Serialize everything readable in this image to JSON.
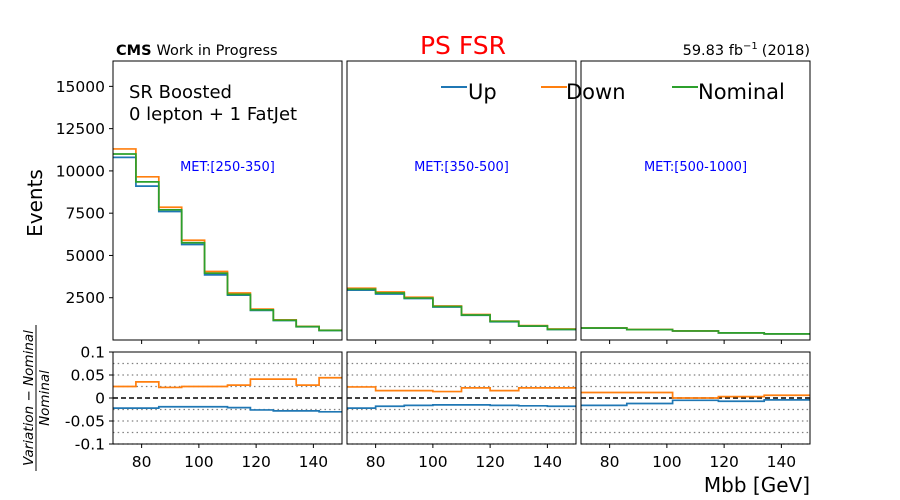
{
  "header": {
    "experiment": "CMS",
    "status": "Work in Progress",
    "title": "PS FSR",
    "lumi_value": "59.83 fb",
    "lumi_exponent": "−1",
    "lumi_year": "(2018)"
  },
  "region": {
    "line1": "SR Boosted",
    "line2": "0 lepton + 1 FatJet"
  },
  "colors": {
    "Up": "#1f77b4",
    "Down": "#ff7f0e",
    "Nominal": "#2ca02c",
    "title": "#ff0000",
    "bin_label": "#0000ff"
  },
  "chart_data": {
    "type": "line",
    "drawstyle": "steps",
    "xlabel": "Mbb [GeV]",
    "ylabel": "Events",
    "ratio_ylabel": {
      "numerator": "Variation − Nominal",
      "denominator": "Nominal"
    },
    "xlim": [
      70,
      150
    ],
    "ylim": [
      0,
      16500
    ],
    "ratio_ylim": [
      -0.1,
      0.1
    ],
    "x_ticks": [
      80,
      100,
      120,
      140
    ],
    "y_ticks": [
      2500,
      5000,
      7500,
      10000,
      12500,
      15000
    ],
    "ratio_y_ticks": [
      0.1,
      0.05,
      0,
      -0.05,
      -0.1
    ],
    "ratio_y_tick_labels": [
      "0.1",
      "0.05",
      "0",
      "-0.05",
      "-0.1"
    ],
    "legend": [
      "Up",
      "Down",
      "Nominal"
    ],
    "legend_position": "top",
    "panels": [
      {
        "label": "MET:[250-350]",
        "bin_edges": [
          70,
          78,
          86,
          94,
          102,
          110,
          118,
          126,
          134,
          142,
          150
        ],
        "series": [
          {
            "name": "Up",
            "values": [
              10800,
              9100,
              7600,
              5650,
              3850,
              2650,
              1750,
              1150,
              780,
              560
            ]
          },
          {
            "name": "Down",
            "values": [
              11300,
              9650,
              7850,
              5900,
              4050,
              2780,
              1830,
              1190,
              810,
              580
            ]
          },
          {
            "name": "Nominal",
            "values": [
              11000,
              9350,
              7700,
              5750,
              3950,
              2700,
              1780,
              1170,
              790,
              570
            ]
          }
        ],
        "ratio": [
          {
            "name": "Up",
            "values": [
              -0.022,
              -0.022,
              -0.019,
              -0.019,
              -0.019,
              -0.021,
              -0.026,
              -0.028,
              -0.028,
              -0.03
            ]
          },
          {
            "name": "Down",
            "values": [
              0.025,
              0.035,
              0.023,
              0.025,
              0.025,
              0.028,
              0.041,
              0.041,
              0.028,
              0.044
            ]
          }
        ]
      },
      {
        "label": "MET:[350-500]",
        "bin_edges": [
          70,
          80,
          90,
          100,
          110,
          120,
          130,
          140,
          150
        ],
        "series": [
          {
            "name": "Up",
            "values": [
              2950,
              2720,
              2450,
              1950,
              1460,
              1080,
              820,
              620
            ]
          },
          {
            "name": "Down",
            "values": [
              3060,
              2840,
              2530,
              2010,
              1510,
              1120,
              850,
              650
            ]
          },
          {
            "name": "Nominal",
            "values": [
              3000,
              2780,
              2480,
              1980,
              1480,
              1100,
              830,
              630
            ]
          }
        ],
        "ratio": [
          {
            "name": "Up",
            "values": [
              -0.022,
              -0.018,
              -0.016,
              -0.015,
              -0.015,
              -0.016,
              -0.017,
              -0.018
            ]
          },
          {
            "name": "Down",
            "values": [
              0.024,
              0.016,
              0.016,
              0.014,
              0.022,
              0.016,
              0.022,
              0.022
            ]
          }
        ]
      },
      {
        "label": "MET:[500-1000]",
        "bin_edges": [
          70,
          86,
          102,
          118,
          134,
          150
        ],
        "series": [
          {
            "name": "Up",
            "values": [
              700,
              610,
              530,
              420,
              360
            ]
          },
          {
            "name": "Down",
            "values": [
              720,
              620,
              540,
              425,
              365
            ]
          },
          {
            "name": "Nominal",
            "values": [
              710,
              615,
              535,
              422,
              362
            ]
          }
        ],
        "ratio": [
          {
            "name": "Up",
            "values": [
              -0.016,
              -0.012,
              -0.005,
              -0.007,
              -0.004
            ]
          },
          {
            "name": "Down",
            "values": [
              0.012,
              0.012,
              0.0,
              0.003,
              0.006
            ]
          }
        ]
      }
    ]
  }
}
